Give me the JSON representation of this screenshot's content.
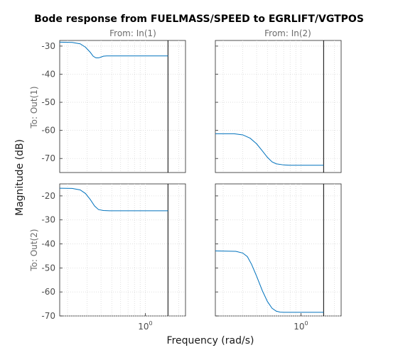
{
  "figure": {
    "title": "Bode response from FUELMASS/SPEED to EGRLIFT/VGTPOS",
    "xlabel": "Frequency  (rad/s)",
    "ylabel": "Magnitude (dB)",
    "column_titles": [
      "From: In(1)",
      "From: In(2)"
    ],
    "row_titles": [
      "To: Out(1)",
      "To: Out(2)"
    ],
    "x_tick_base": "10",
    "x_tick_exponent": "0",
    "line_color": "#0072BD"
  },
  "chart_data": {
    "type": "line",
    "xscale": "log",
    "xlim": [
      0.17,
      2.3
    ],
    "nyquist_marker": 1.6,
    "grid": true,
    "legend": "none",
    "rows": [
      {
        "ylim": [
          -75,
          -28
        ],
        "yticks": [
          -30,
          -40,
          -50,
          -60,
          -70
        ],
        "panels": [
          {
            "x": [
              0.17,
              0.22,
              0.26,
              0.29,
              0.32,
              0.34,
              0.36,
              0.38,
              0.4,
              0.42,
              0.45,
              0.5,
              0.6,
              0.8,
              1.0,
              1.3,
              1.6
            ],
            "y": [
              -28.6,
              -28.7,
              -29.2,
              -30.4,
              -32.2,
              -33.6,
              -34.2,
              -34.2,
              -33.9,
              -33.6,
              -33.5,
              -33.5,
              -33.5,
              -33.5,
              -33.5,
              -33.5,
              -33.5
            ]
          },
          {
            "x": [
              0.17,
              0.25,
              0.3,
              0.35,
              0.4,
              0.45,
              0.5,
              0.55,
              0.6,
              0.7,
              0.8,
              1.0,
              1.3,
              1.6
            ],
            "y": [
              -61.2,
              -61.2,
              -61.6,
              -62.8,
              -64.8,
              -67.3,
              -69.6,
              -71.2,
              -71.9,
              -72.3,
              -72.4,
              -72.4,
              -72.4,
              -72.4
            ]
          }
        ]
      },
      {
        "ylim": [
          -70,
          -15
        ],
        "yticks": [
          -20,
          -30,
          -40,
          -50,
          -60,
          -70
        ],
        "panels": [
          {
            "x": [
              0.17,
              0.22,
              0.26,
              0.29,
              0.32,
              0.35,
              0.38,
              0.42,
              0.48,
              0.6,
              0.8,
              1.0,
              1.3,
              1.6
            ],
            "y": [
              -16.8,
              -16.9,
              -17.5,
              -19.0,
              -21.5,
              -24.2,
              -25.7,
              -26.1,
              -26.2,
              -26.2,
              -26.2,
              -26.2,
              -26.2,
              -26.2
            ]
          },
          {
            "x": [
              0.17,
              0.26,
              0.3,
              0.33,
              0.36,
              0.4,
              0.45,
              0.5,
              0.55,
              0.6,
              0.65,
              0.7,
              0.8,
              1.0,
              1.3,
              1.6
            ],
            "y": [
              -42.9,
              -43.1,
              -43.8,
              -45.3,
              -48.5,
              -53.5,
              -59.5,
              -64.0,
              -66.8,
              -68.0,
              -68.4,
              -68.5,
              -68.5,
              -68.5,
              -68.5,
              -68.5
            ]
          }
        ]
      }
    ]
  }
}
